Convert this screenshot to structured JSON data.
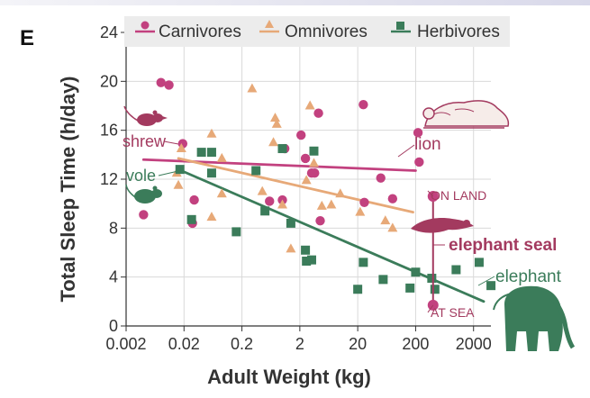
{
  "panel_label": "E",
  "colors": {
    "carnivores": "#c2417f",
    "omnivores": "#e7a978",
    "herbivores": "#3b7c5a",
    "elephant_seal": "#a33a5f",
    "grid": "#d9d9d9",
    "legend_bg": "#ececec"
  },
  "annotations": {
    "shrew": "shrew",
    "vole": "vole",
    "lion": "lion",
    "on_land": "ON LAND",
    "at_sea": "AT SEA",
    "elephant_seal": "elephant seal",
    "elephant": "elephant"
  },
  "icons": [
    "shrew-icon",
    "vole-icon",
    "lion-icon",
    "elephant-seal-icon",
    "elephant-icon"
  ],
  "chart_data": {
    "type": "scatter",
    "xlabel": "Adult Weight (kg)",
    "ylabel": "Total Sleep Time (h/day)",
    "xscale": "log",
    "xlim": [
      0.002,
      6000
    ],
    "ylim": [
      0,
      24
    ],
    "xticks": [
      0.002,
      0.02,
      0.2,
      2,
      20,
      200,
      2000
    ],
    "xtick_labels": [
      "0.002",
      "0.02",
      "0.2",
      "2",
      "20",
      "200",
      "2000"
    ],
    "yticks": [
      0,
      4,
      8,
      12,
      16,
      20,
      24
    ],
    "ytick_labels": [
      "0",
      "4",
      "8",
      "12",
      "16",
      "20",
      "24"
    ],
    "grid": true,
    "legend_position": "top",
    "series": [
      {
        "name": "Carnivores",
        "marker": "circle",
        "points": [
          [
            0.004,
            9.1
          ],
          [
            0.008,
            19.9
          ],
          [
            0.011,
            19.7
          ],
          [
            0.019,
            14.9
          ],
          [
            0.028,
            8.4
          ],
          [
            0.03,
            10.3
          ],
          [
            0.6,
            10.2
          ],
          [
            1.0,
            10.3
          ],
          [
            1.1,
            14.5
          ],
          [
            2.1,
            15.6
          ],
          [
            2.5,
            13.7
          ],
          [
            3.2,
            12.5
          ],
          [
            3.6,
            12.5
          ],
          [
            4.2,
            17.4
          ],
          [
            4.5,
            8.6
          ],
          [
            25,
            18.1
          ],
          [
            26,
            10.1
          ],
          [
            50,
            12.1
          ],
          [
            80,
            10.4
          ],
          [
            220,
            15.8
          ],
          [
            230,
            13.4
          ]
        ]
      },
      {
        "name": "Omnivores",
        "marker": "triangle",
        "points": [
          [
            0.015,
            12.5
          ],
          [
            0.016,
            11.5
          ],
          [
            0.018,
            14.5
          ],
          [
            0.06,
            8.9
          ],
          [
            0.06,
            15.7
          ],
          [
            0.09,
            13.7
          ],
          [
            0.09,
            10.8
          ],
          [
            0.3,
            19.4
          ],
          [
            0.45,
            11
          ],
          [
            0.7,
            15
          ],
          [
            0.75,
            17
          ],
          [
            0.8,
            16.5
          ],
          [
            1.0,
            9.9
          ],
          [
            1.4,
            6.3
          ],
          [
            2.6,
            11.9
          ],
          [
            3.0,
            18
          ],
          [
            3.5,
            13.3
          ],
          [
            4.8,
            9.8
          ],
          [
            7.0,
            9.9
          ],
          [
            10,
            10.8
          ],
          [
            22,
            9.3
          ],
          [
            60,
            8.6
          ],
          [
            80,
            8.0
          ]
        ]
      },
      {
        "name": "Herbivores",
        "marker": "square",
        "points": [
          [
            0.017,
            12.8
          ],
          [
            0.027,
            8.7
          ],
          [
            0.04,
            14.2
          ],
          [
            0.06,
            14.2
          ],
          [
            0.06,
            12.5
          ],
          [
            0.16,
            7.7
          ],
          [
            0.35,
            12.7
          ],
          [
            0.5,
            9.4
          ],
          [
            1.0,
            14.5
          ],
          [
            1.4,
            8.4
          ],
          [
            2.5,
            6.2
          ],
          [
            2.6,
            5.3
          ],
          [
            3.2,
            5.4
          ],
          [
            3.5,
            14.3
          ],
          [
            20,
            3
          ],
          [
            25,
            5.2
          ],
          [
            55,
            3.8
          ],
          [
            160,
            3.1
          ],
          [
            200,
            4.4
          ],
          [
            380,
            3.9
          ],
          [
            430,
            3
          ],
          [
            1000,
            4.6
          ],
          [
            2500,
            5.2
          ],
          [
            4000,
            3.3
          ]
        ]
      }
    ],
    "trend_lines": [
      {
        "series": "Carnivores",
        "x": [
          0.004,
          200
        ],
        "y": [
          13.6,
          12.7
        ]
      },
      {
        "series": "Omnivores",
        "x": [
          0.016,
          180
        ],
        "y": [
          13.7,
          9.3
        ]
      },
      {
        "series": "Herbivores",
        "x": [
          0.016,
          3000
        ],
        "y": [
          12.8,
          2.0
        ]
      }
    ],
    "elephant_seal": {
      "x": 400,
      "on_land": 10.6,
      "at_sea": 1.7
    }
  }
}
